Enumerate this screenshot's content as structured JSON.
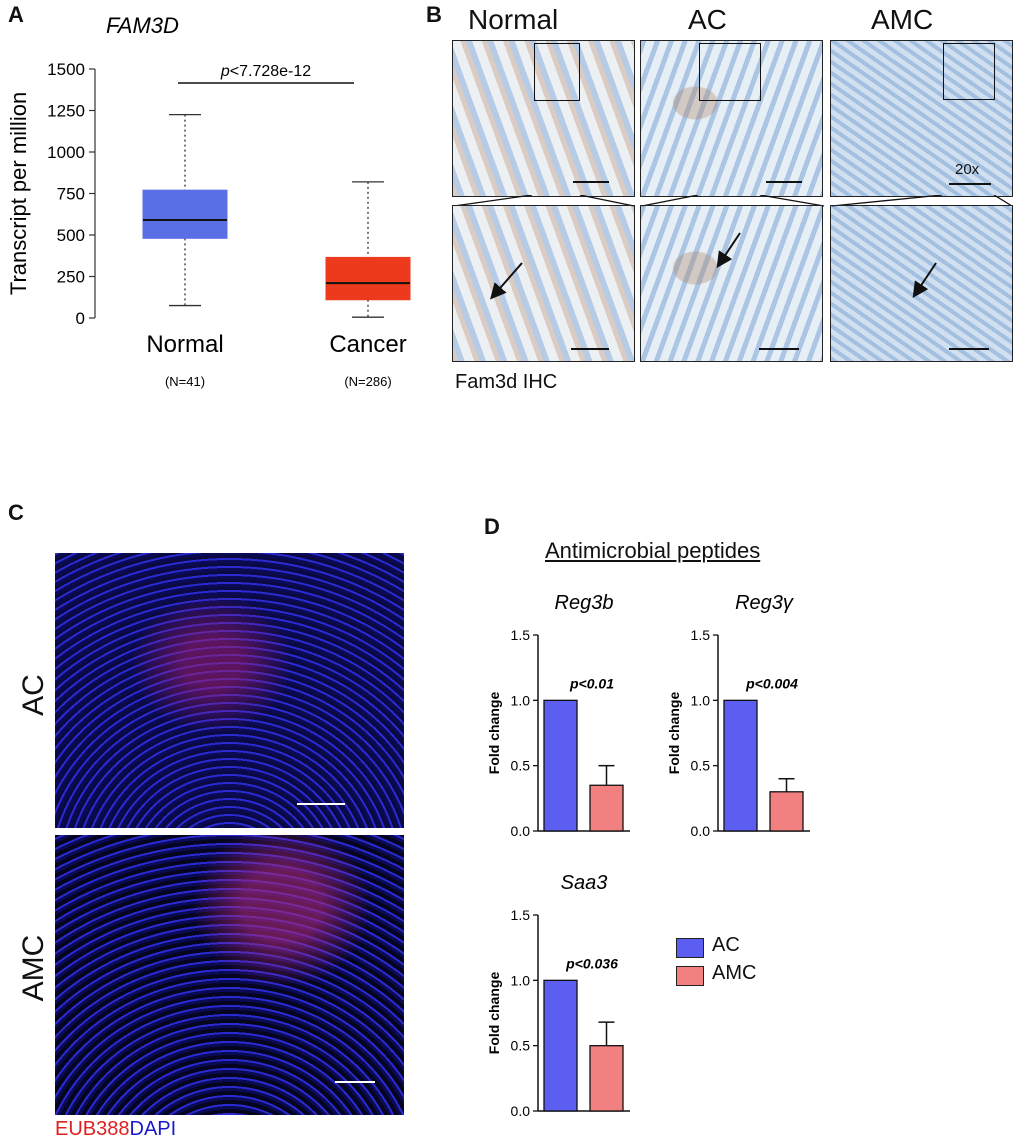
{
  "panels": {
    "a": "A",
    "b": "B",
    "c": "C",
    "d": "D"
  },
  "panel_b": {
    "columns": [
      "Normal",
      "AC",
      "AMC"
    ],
    "magnification": "20x",
    "caption": "Fam3d IHC"
  },
  "panel_c": {
    "rows": [
      "AC",
      "AMC"
    ],
    "stain_red": "EUB388",
    "stain_blue": "DAPI",
    "colors": {
      "red": "#e02020",
      "blue": "#1a1acc"
    }
  },
  "panel_d": {
    "heading": "Antimicrobial peptides",
    "legend": [
      {
        "label": "AC",
        "color": "#5b5ef0"
      },
      {
        "label": "AMC",
        "color": "#f28080"
      }
    ]
  },
  "chart_data": [
    {
      "type": "box",
      "title": "FAM3D",
      "ylabel": "Transcript per million",
      "ylim": [
        0,
        1500
      ],
      "yticks": [
        0,
        250,
        500,
        750,
        1000,
        1250,
        1500
      ],
      "categories": [
        "Normal",
        "Cancer"
      ],
      "category_notes": [
        "(N=41)",
        "(N=286)"
      ],
      "annotation": "p<7.728e-12",
      "boxes": [
        {
          "name": "Normal",
          "min": 75,
          "q1": 480,
          "median": 590,
          "q3": 770,
          "max": 1225,
          "color": "#5a6fe6"
        },
        {
          "name": "Cancer",
          "min": 5,
          "q1": 110,
          "median": 210,
          "q3": 365,
          "max": 820,
          "color": "#ee3a1c"
        }
      ]
    },
    {
      "type": "bar",
      "title": "Reg3b",
      "ylabel": "Fold change",
      "ylim": [
        0,
        1.5
      ],
      "yticks": [
        "0.0",
        "0.5",
        "1.0",
        "1.5"
      ],
      "categories": [
        "AC",
        "AMC"
      ],
      "values": [
        1.0,
        0.35
      ],
      "errors": [
        0,
        0.15
      ],
      "annotation": "p<0.01"
    },
    {
      "type": "bar",
      "title": "Reg3γ",
      "ylabel": "Fold change",
      "ylim": [
        0,
        1.5
      ],
      "yticks": [
        "0.0",
        "0.5",
        "1.0",
        "1.5"
      ],
      "categories": [
        "AC",
        "AMC"
      ],
      "values": [
        1.0,
        0.3
      ],
      "errors": [
        0,
        0.1
      ],
      "annotation": "p<0.004"
    },
    {
      "type": "bar",
      "title": "Saa3",
      "ylabel": "Fold change",
      "ylim": [
        0,
        1.5
      ],
      "yticks": [
        "0.0",
        "0.5",
        "1.0",
        "1.5"
      ],
      "categories": [
        "AC",
        "AMC"
      ],
      "values": [
        1.0,
        0.5
      ],
      "errors": [
        0,
        0.18
      ],
      "annotation": "p<0.036"
    }
  ]
}
